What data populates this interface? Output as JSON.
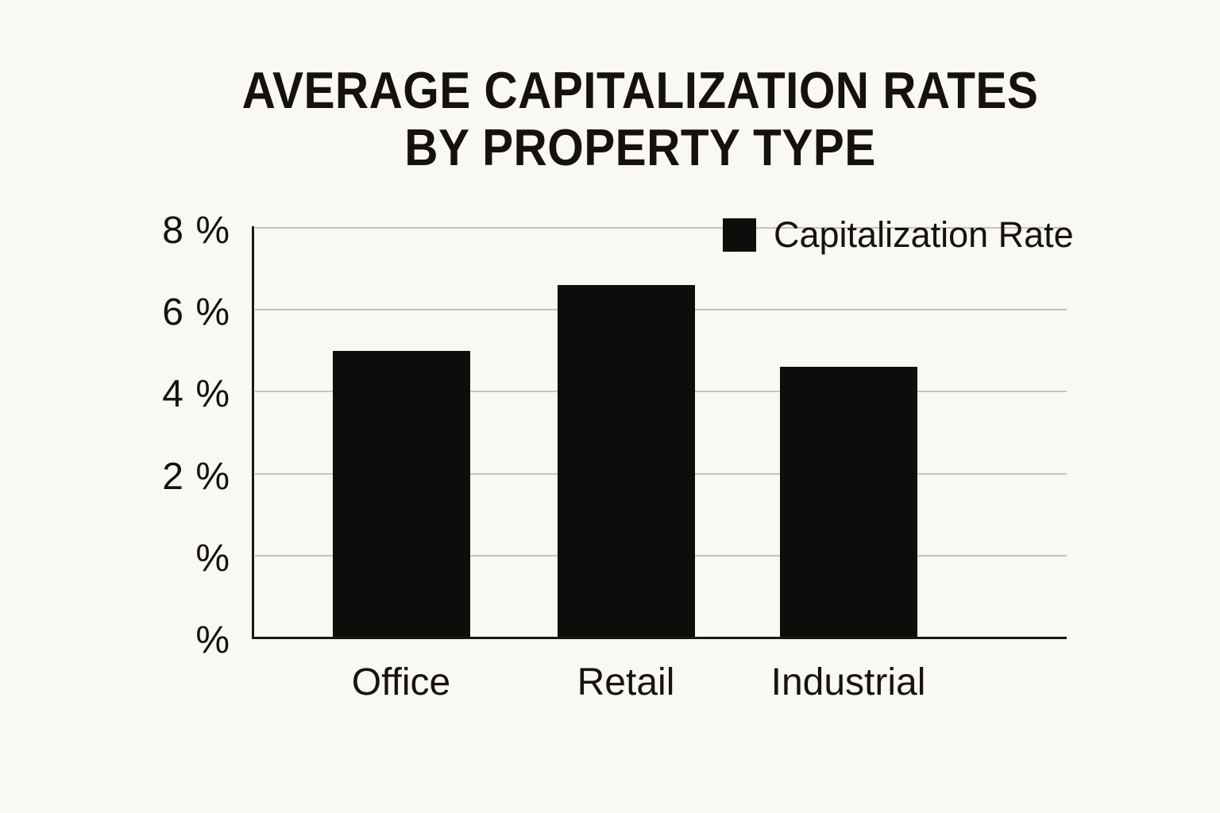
{
  "page": {
    "background_color": "#faf8f2",
    "text_color": "#16130f",
    "accent_color": "#0f0d0b"
  },
  "title": {
    "line1": "AVERAGE CAPITALIZATION RATES",
    "line2": "BY PROPERTY TYPE"
  },
  "legend": {
    "label": "Capitalization Rate",
    "swatch_color": "#0f0d0b"
  },
  "chart_data": {
    "type": "bar",
    "title": "AVERAGE CAPITALIZATION RATES BY PROPERTY TYPE",
    "categories": [
      "Office",
      "Retail",
      "Industrial"
    ],
    "series": [
      {
        "name": "Capitalization Rate",
        "values": [
          5.0,
          6.6,
          4.6
        ]
      }
    ],
    "unit": "%",
    "xlabel": "",
    "ylabel": "",
    "ylim": [
      -2,
      8
    ],
    "ytick_values": [
      8,
      6,
      4,
      2,
      0,
      -2
    ],
    "ytick_labels": [
      "8 %",
      "6 %",
      "4 %",
      "2 %",
      "%",
      "%"
    ],
    "grid": true,
    "legend_position": "top-right",
    "bar_color": "#0f0d0b",
    "gridline_color": "#c6c3bd",
    "axis_color": "#1a1714"
  }
}
